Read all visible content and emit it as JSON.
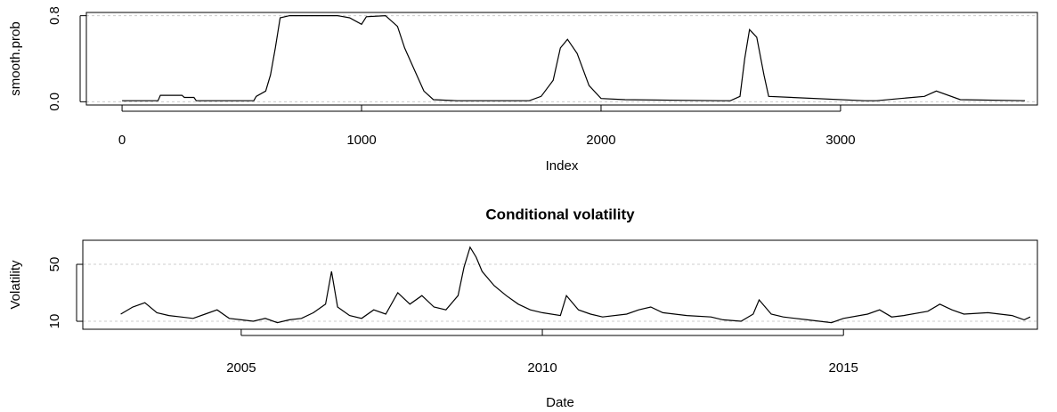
{
  "chart_data": [
    {
      "type": "line",
      "ylabel": "smooth.prob",
      "xlabel": "Index",
      "x": [
        0,
        150,
        160,
        250,
        260,
        300,
        310,
        550,
        560,
        600,
        620,
        640,
        660,
        700,
        800,
        900,
        950,
        1000,
        1020,
        1100,
        1150,
        1180,
        1220,
        1260,
        1300,
        1400,
        1700,
        1750,
        1800,
        1830,
        1860,
        1900,
        1950,
        2000,
        2100,
        2500,
        2540,
        2580,
        2600,
        2620,
        2650,
        2680,
        2700,
        3100,
        3150,
        3250,
        3300,
        3350,
        3380,
        3400,
        3500,
        3770
      ],
      "series": [
        {
          "name": "smooth.prob",
          "color": "#000000",
          "values": [
            0.01,
            0.01,
            0.06,
            0.06,
            0.04,
            0.04,
            0.01,
            0.01,
            0.05,
            0.1,
            0.25,
            0.5,
            0.78,
            0.8,
            0.8,
            0.8,
            0.78,
            0.72,
            0.79,
            0.8,
            0.7,
            0.5,
            0.3,
            0.1,
            0.02,
            0.01,
            0.01,
            0.05,
            0.2,
            0.5,
            0.58,
            0.45,
            0.15,
            0.03,
            0.02,
            0.01,
            0.01,
            0.05,
            0.4,
            0.67,
            0.6,
            0.25,
            0.05,
            0.01,
            0.01,
            0.03,
            0.04,
            0.05,
            0.08,
            0.1,
            0.02,
            0.01
          ]
        }
      ],
      "xlim": [
        -149,
        3822
      ],
      "xticks": [
        0,
        1000,
        2000,
        3000
      ],
      "ylim": [
        -0.03,
        0.83
      ],
      "yticks": [
        {
          "value": 0,
          "label": "0.0"
        },
        0.8
      ],
      "grid": true
    },
    {
      "type": "line",
      "title": "Conditional volatility",
      "ylabel": "Volatility",
      "xlabel": "Date",
      "x": [
        2003.0,
        2003.2,
        2003.4,
        2003.6,
        2003.8,
        2004.0,
        2004.2,
        2004.4,
        2004.6,
        2004.8,
        2005.0,
        2005.2,
        2005.4,
        2005.6,
        2005.8,
        2006.0,
        2006.2,
        2006.4,
        2006.5,
        2006.6,
        2006.8,
        2007.0,
        2007.2,
        2007.4,
        2007.6,
        2007.8,
        2008.0,
        2008.2,
        2008.4,
        2008.6,
        2008.7,
        2008.8,
        2008.9,
        2009.0,
        2009.2,
        2009.4,
        2009.6,
        2009.8,
        2010.0,
        2010.3,
        2010.4,
        2010.6,
        2010.8,
        2011.0,
        2011.4,
        2011.6,
        2011.8,
        2012.0,
        2012.4,
        2012.8,
        2013.0,
        2013.3,
        2013.5,
        2013.6,
        2013.8,
        2014.0,
        2014.4,
        2014.8,
        2015.0,
        2015.4,
        2015.6,
        2015.8,
        2016.0,
        2016.4,
        2016.6,
        2016.8,
        2017.0,
        2017.4,
        2017.8,
        2018.0,
        2018.1
      ],
      "series": [
        {
          "name": "Volatility",
          "color": "#000000",
          "values": [
            15,
            20,
            23,
            16,
            14,
            13,
            12,
            15,
            18,
            12,
            11,
            10,
            12,
            9,
            11,
            12,
            16,
            22,
            45,
            20,
            14,
            12,
            18,
            15,
            30,
            22,
            28,
            20,
            18,
            28,
            48,
            62,
            55,
            45,
            35,
            28,
            22,
            18,
            16,
            14,
            28,
            18,
            15,
            13,
            15,
            18,
            20,
            16,
            14,
            13,
            11,
            10,
            15,
            25,
            15,
            13,
            11,
            9,
            12,
            15,
            18,
            13,
            14,
            17,
            22,
            18,
            15,
            16,
            14,
            11,
            13
          ]
        }
      ],
      "xlim": [
        2002.37,
        2018.22
      ],
      "xticks": [
        2005,
        2010,
        2015
      ],
      "ylim": [
        4.4,
        66.9
      ],
      "yticks": [
        10,
        50
      ],
      "grid": true
    }
  ]
}
